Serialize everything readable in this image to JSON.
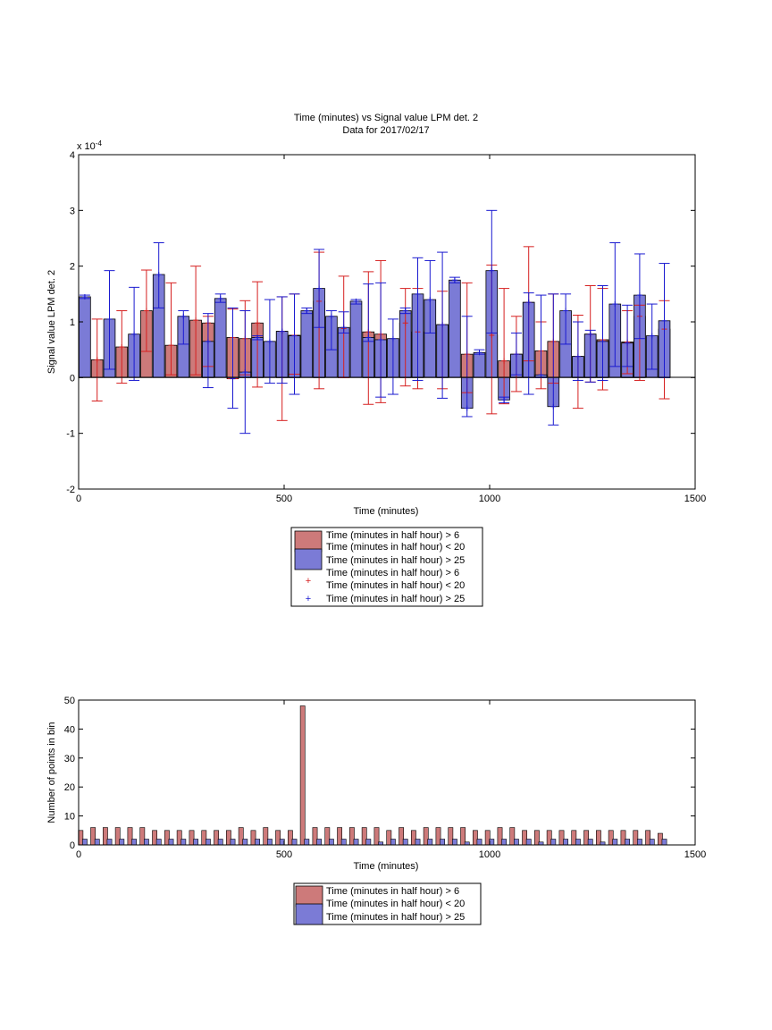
{
  "chart_data": [
    {
      "type": "bar",
      "title": "Time (minutes) vs Signal value LPM det. 2",
      "subtitle": "Data for 2017/02/17",
      "xlabel": "Time (minutes)",
      "ylabel": "Signal value LPM det. 2",
      "y_exponent_label": "x 10",
      "y_exponent_power": "-4",
      "xlim": [
        0,
        1500
      ],
      "ylim": [
        -2,
        4
      ],
      "x_ticks": [
        "0",
        "500",
        "1000",
        "1500"
      ],
      "y_ticks": [
        "-2",
        "-1",
        "0",
        "1",
        "2",
        "3",
        "4"
      ],
      "grid": false,
      "legend_placement": "below",
      "legend": [
        "Time (minutes in half hour) > 6",
        "Time (minutes in half hour) < 20",
        "Time (minutes in half hour) > 25",
        "Time (minutes in half hour) > 6",
        "Time (minutes in half hour) < 20",
        "Time (minutes in half hour) > 25"
      ],
      "colors": {
        "red_bar": "#cd7a7a",
        "blue_bar": "#7b7bd6",
        "red_err": "#d62020",
        "blue_err": "#1a1ad0"
      },
      "red": {
        "x": [
          45,
          105,
          165,
          225,
          285,
          315,
          375,
          405,
          435,
          495,
          525,
          585,
          645,
          705,
          735,
          795,
          825,
          885,
          945,
          1005,
          1035,
          1065,
          1095,
          1125,
          1155,
          1215,
          1245,
          1275,
          1335,
          1365,
          1425
        ],
        "values": [
          0.32,
          0.55,
          1.2,
          0.58,
          1.03,
          0.98,
          0.72,
          0.7,
          0.98,
          0.83,
          0.76,
          1.37,
          0.88,
          0.82,
          0.78,
          0.98,
          0.82,
          0.95,
          0.42,
          0.76,
          0.3,
          0.42,
          1.35,
          0.48,
          0.65,
          0.38,
          0.78,
          0.68,
          0.64,
          1.1,
          0.87
        ],
        "err_low": [
          -0.42,
          -0.1,
          0.47,
          0.05,
          0.05,
          0.2,
          -0.02,
          0.05,
          -0.17,
          -0.77,
          0.06,
          -0.2,
          0.0,
          -0.48,
          -0.45,
          -0.15,
          -0.2,
          -0.2,
          -0.27,
          -0.65,
          -0.47,
          -0.25,
          0.3,
          -0.2,
          -0.1,
          -0.55,
          -0.08,
          -0.22,
          0.07,
          -0.05,
          -0.38
        ],
        "err_high": [
          1.05,
          1.2,
          1.93,
          1.7,
          2.0,
          1.1,
          1.23,
          1.38,
          1.72,
          1.45,
          1.5,
          2.25,
          1.82,
          1.9,
          2.1,
          1.6,
          1.6,
          1.55,
          1.7,
          2.02,
          1.6,
          1.1,
          2.35,
          1.0,
          1.5,
          1.12,
          1.65,
          1.6,
          1.2,
          1.3,
          1.38
        ]
      },
      "blue": {
        "x": [
          15,
          75,
          135,
          195,
          255,
          315,
          345,
          375,
          405,
          435,
          465,
          495,
          525,
          555,
          585,
          615,
          645,
          675,
          705,
          735,
          765,
          795,
          825,
          855,
          885,
          915,
          945,
          975,
          1005,
          1035,
          1065,
          1095,
          1125,
          1155,
          1185,
          1215,
          1245,
          1275,
          1305,
          1335,
          1365,
          1395,
          1425
        ],
        "values": [
          1.45,
          1.05,
          0.78,
          1.85,
          1.1,
          0.65,
          1.42,
          -0.02,
          0.1,
          0.72,
          0.65,
          0.83,
          0.75,
          1.2,
          1.6,
          1.1,
          0.9,
          1.37,
          0.72,
          0.68,
          0.7,
          1.2,
          1.5,
          1.4,
          0.95,
          1.75,
          -0.55,
          0.45,
          1.92,
          -0.4,
          0.42,
          1.35,
          0.05,
          -0.52,
          1.2,
          0.38,
          0.78,
          0.65,
          1.32,
          0.62,
          1.48,
          0.75,
          1.02
        ],
        "err_low": [
          1.42,
          0.15,
          -0.05,
          1.25,
          0.6,
          -0.18,
          1.35,
          -0.55,
          -1.0,
          0.68,
          -0.1,
          -0.1,
          -0.3,
          1.15,
          0.9,
          0.5,
          0.8,
          1.32,
          0.65,
          -0.35,
          -0.3,
          1.15,
          -0.05,
          0.8,
          -0.37,
          1.7,
          -0.7,
          0.42,
          0.8,
          -0.45,
          0.05,
          -0.3,
          0.0,
          -0.85,
          0.6,
          -0.05,
          -0.08,
          -0.05,
          0.2,
          0.2,
          0.7,
          0.15,
          0.0
        ],
        "err_high": [
          1.48,
          1.92,
          1.62,
          2.42,
          1.2,
          1.15,
          1.5,
          1.25,
          1.2,
          0.75,
          1.4,
          1.45,
          1.5,
          1.25,
          2.3,
          1.2,
          1.18,
          1.4,
          1.68,
          1.7,
          1.05,
          1.25,
          2.15,
          2.1,
          2.25,
          1.8,
          1.1,
          0.5,
          3.0,
          -0.35,
          0.8,
          1.52,
          1.48,
          1.5,
          1.5,
          1.0,
          0.85,
          1.65,
          2.42,
          1.3,
          2.22,
          1.32,
          2.05
        ]
      }
    },
    {
      "type": "bar",
      "xlabel": "Time (minutes)",
      "ylabel": "Number of points in bin",
      "xlim": [
        0,
        1500
      ],
      "ylim": [
        0,
        50
      ],
      "x_ticks": [
        "0",
        "500",
        "1000",
        "1500"
      ],
      "y_ticks": [
        "0",
        "10",
        "20",
        "30",
        "40",
        "50"
      ],
      "grid": false,
      "legend_placement": "below",
      "legend": [
        "Time (minutes in half hour) > 6",
        "Time (minutes in half hour) < 20",
        "Time (minutes in half hour) > 25"
      ],
      "red": {
        "x": [
          5,
          35,
          65,
          95,
          125,
          155,
          185,
          215,
          245,
          275,
          305,
          335,
          365,
          395,
          425,
          455,
          485,
          515,
          545,
          575,
          605,
          635,
          665,
          695,
          725,
          755,
          785,
          815,
          845,
          875,
          905,
          935,
          965,
          995,
          1025,
          1055,
          1085,
          1115,
          1145,
          1175,
          1205,
          1235,
          1265,
          1295,
          1325,
          1355,
          1385,
          1415
        ],
        "values": [
          5,
          6,
          6,
          6,
          6,
          6,
          5,
          5,
          5,
          5,
          5,
          5,
          5,
          6,
          5,
          6,
          5,
          5,
          48,
          6,
          6,
          6,
          6,
          6,
          6,
          5,
          6,
          5,
          6,
          6,
          6,
          6,
          5,
          5,
          6,
          6,
          5,
          5,
          5,
          5,
          5,
          5,
          5,
          5,
          5,
          5,
          5,
          4
        ]
      },
      "blue": {
        "x": [
          15,
          45,
          75,
          105,
          135,
          165,
          195,
          225,
          255,
          285,
          315,
          345,
          375,
          405,
          435,
          465,
          495,
          525,
          555,
          585,
          615,
          645,
          675,
          705,
          735,
          765,
          795,
          825,
          855,
          885,
          915,
          945,
          975,
          1005,
          1035,
          1065,
          1095,
          1125,
          1155,
          1185,
          1215,
          1245,
          1275,
          1305,
          1335,
          1365,
          1395,
          1425
        ],
        "values": [
          2,
          2,
          2,
          2,
          2,
          2,
          2,
          2,
          2,
          2,
          2,
          2,
          2,
          2,
          2,
          2,
          2,
          2,
          2,
          2,
          2,
          2,
          2,
          2,
          1,
          2,
          2,
          2,
          2,
          2,
          2,
          1,
          2,
          2,
          2,
          2,
          2,
          1,
          2,
          2,
          2,
          2,
          1,
          2,
          2,
          2,
          2,
          2
        ]
      }
    }
  ]
}
